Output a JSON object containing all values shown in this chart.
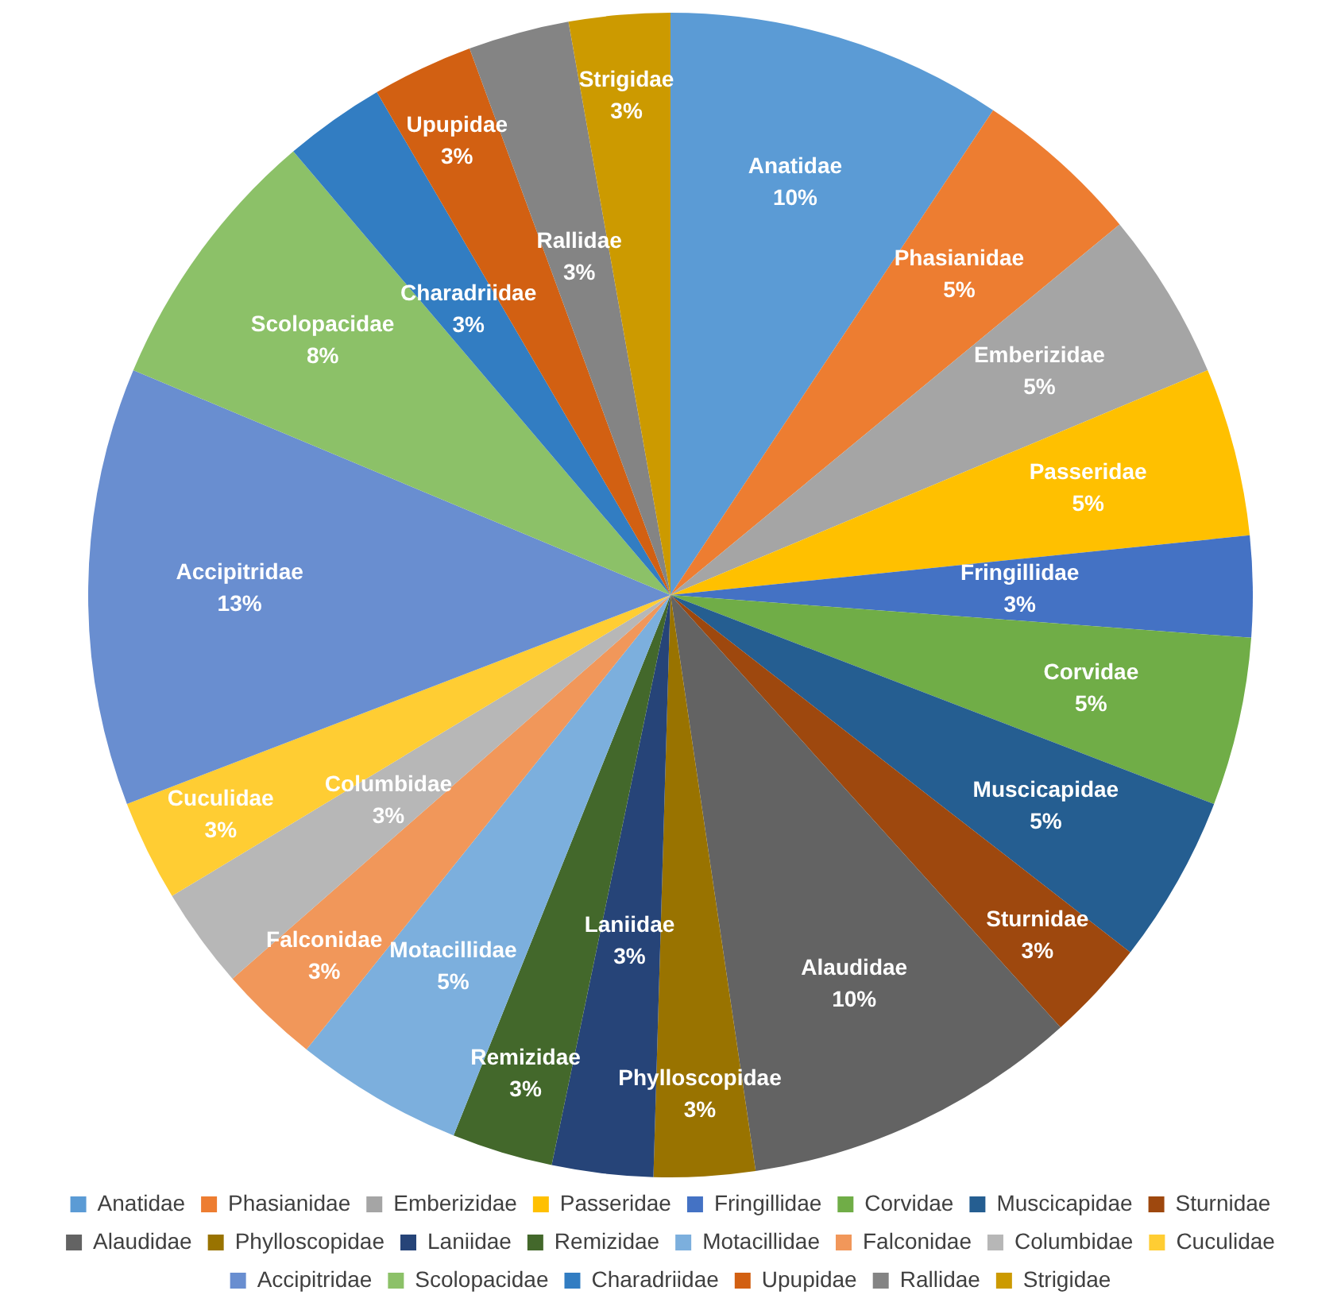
{
  "chart_data": {
    "type": "pie",
    "categories": [
      "Anatidae",
      "Phasianidae",
      "Emberizidae",
      "Passeridae",
      "Fringillidae",
      "Corvidae",
      "Muscicapidae",
      "Sturnidae",
      "Alaudidae",
      "Phylloscopidae",
      "Laniidae",
      "Remizidae",
      "Motacillidae",
      "Falconidae",
      "Columbidae",
      "Cuculidae",
      "Accipitridae",
      "Scolopacidae",
      "Charadriidae",
      "Upupidae",
      "Rallidae",
      "Strigidae"
    ],
    "values": [
      10,
      5,
      5,
      5,
      3,
      5,
      5,
      3,
      10,
      3,
      3,
      3,
      5,
      3,
      3,
      3,
      13,
      8,
      3,
      3,
      3,
      3
    ],
    "value_labels": [
      "10%",
      "5%",
      "5%",
      "5%",
      "3%",
      "5%",
      "5%",
      "3%",
      "10%",
      "3%",
      "3%",
      "3%",
      "5%",
      "3%",
      "3%",
      "3%",
      "13%",
      "8%",
      "3%",
      "3%",
      "3%",
      "3%"
    ],
    "colors": [
      "#5b9bd5",
      "#ed7d31",
      "#a5a5a5",
      "#ffc000",
      "#4472c4",
      "#70ad47",
      "#255e91",
      "#9e480e",
      "#636363",
      "#997300",
      "#264478",
      "#43682b",
      "#7cafdd",
      "#f1975a",
      "#b7b7b7",
      "#ffcd33",
      "#698ed0",
      "#8cc168",
      "#327dc2",
      "#d26012",
      "#848484",
      "#cc9a00"
    ],
    "legend": "bottom"
  }
}
